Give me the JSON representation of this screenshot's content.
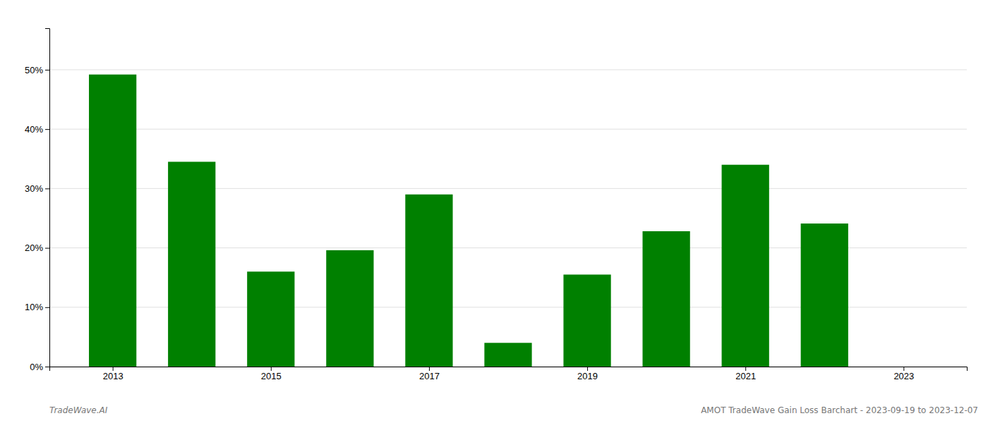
{
  "chart_data": {
    "type": "bar",
    "x": [
      2013,
      2014,
      2015,
      2016,
      2017,
      2018,
      2019,
      2020,
      2021,
      2022
    ],
    "values": [
      0.492,
      0.345,
      0.16,
      0.196,
      0.29,
      0.04,
      0.155,
      0.228,
      0.34,
      0.241
    ],
    "color": "#008000",
    "xlim": [
      2012.2,
      2023.8
    ],
    "xticks": [
      2013,
      2015,
      2017,
      2019,
      2021,
      2023
    ],
    "ylim": [
      0,
      0.57
    ],
    "yticks": [
      {
        "value": 0.0,
        "label": "0%"
      },
      {
        "value": 0.1,
        "label": "10%"
      },
      {
        "value": 0.2,
        "label": "20%"
      },
      {
        "value": 0.3,
        "label": "30%"
      },
      {
        "value": 0.4,
        "label": "40%"
      },
      {
        "value": 0.5,
        "label": "50%"
      }
    ],
    "grid": true,
    "annotations": [
      "TradeWave.AI",
      "AMOT TradeWave Gain Loss Barchart - 2023-09-19 to 2023-12-07"
    ]
  }
}
